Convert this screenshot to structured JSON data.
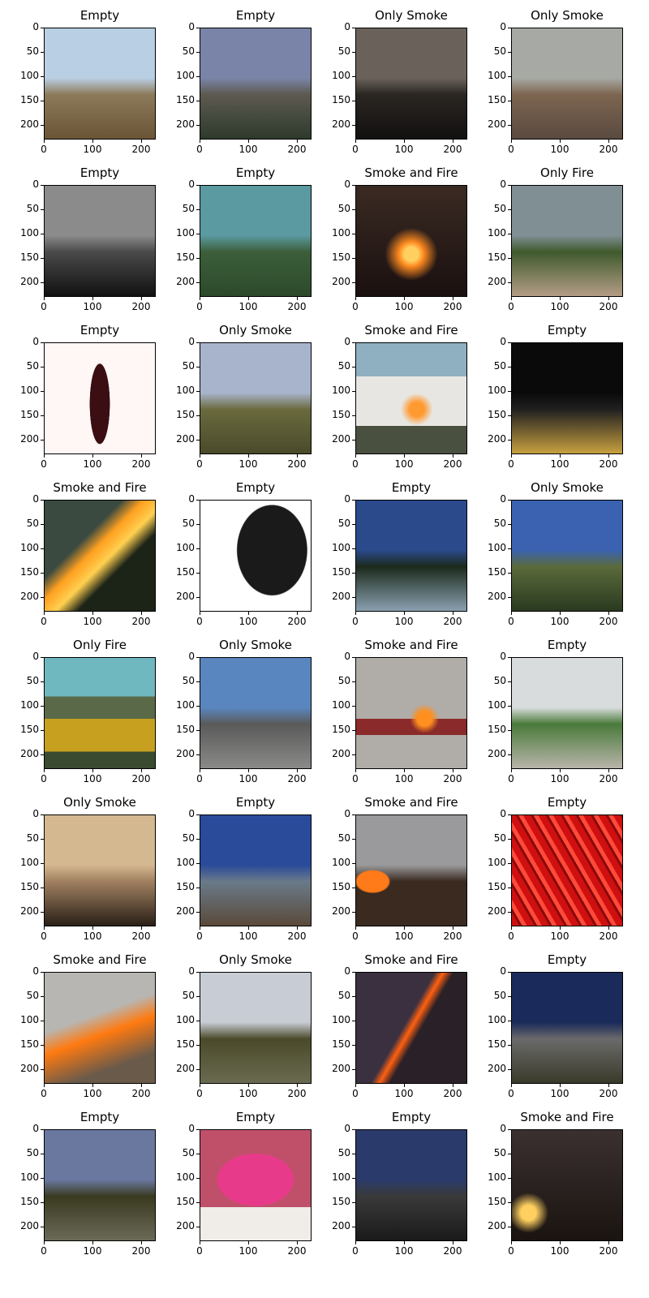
{
  "axis": {
    "y_ticks": [
      "0",
      "50",
      "100",
      "150",
      "200"
    ],
    "x_ticks": [
      "0",
      "100",
      "200"
    ]
  },
  "panels": [
    {
      "title": "Empty",
      "scene": "mountain-landscape",
      "colors": [
        "#b9cfe3",
        "#8c7a5a",
        "#6a5536"
      ]
    },
    {
      "title": "Empty",
      "scene": "aerial-valley",
      "colors": [
        "#7a84a8",
        "#5d5a50",
        "#2e3a2c"
      ]
    },
    {
      "title": "Only Smoke",
      "scene": "dark-smoke",
      "colors": [
        "#6a625a",
        "#2a2622",
        "#121010"
      ]
    },
    {
      "title": "Only Smoke",
      "scene": "aerial-factory-smoke",
      "colors": [
        "#a7a9a4",
        "#7d6550",
        "#5a4a40"
      ]
    },
    {
      "title": "Empty",
      "scene": "cloudy-sky",
      "colors": [
        "#8b8b8b",
        "#4a4a4a",
        "#111111"
      ]
    },
    {
      "title": "Empty",
      "scene": "green-hills",
      "colors": [
        "#5a9aa0",
        "#3c5e3a",
        "#2c4a2a"
      ]
    },
    {
      "title": "Smoke and Fire",
      "scene": "night-fire",
      "colors": [
        "#3a2a22",
        "#ff8a20",
        "#1a1010"
      ]
    },
    {
      "title": "Only Fire",
      "scene": "aerial-town",
      "colors": [
        "#7f8f94",
        "#3f5a2c",
        "#b49c86"
      ]
    },
    {
      "title": "Empty",
      "scene": "wine-bottle",
      "colors": [
        "#fff6f6",
        "#3a0e12",
        "#e8e0d6"
      ]
    },
    {
      "title": "Only Smoke",
      "scene": "hill-smoke",
      "colors": [
        "#a8b4cc",
        "#6a6a3e",
        "#4a4a2a"
      ]
    },
    {
      "title": "Smoke and Fire",
      "scene": "bus-fire",
      "colors": [
        "#8fb0c0",
        "#e8e6e2",
        "#ff9a30"
      ]
    },
    {
      "title": "Empty",
      "scene": "night-dark",
      "colors": [
        "#0a0a0a",
        "#202020",
        "#c8a040"
      ]
    },
    {
      "title": "Smoke and Fire",
      "scene": "slope-fire",
      "colors": [
        "#3a4a40",
        "#ffa020",
        "#1c2418"
      ]
    },
    {
      "title": "Empty",
      "scene": "trash-bags",
      "colors": [
        "#ffffff",
        "#1a1a1a",
        "#e0b020"
      ]
    },
    {
      "title": "Empty",
      "scene": "camera-view",
      "colors": [
        "#2a4a8c",
        "#1c2a1c",
        "#8aa0b0"
      ]
    },
    {
      "title": "Only Smoke",
      "scene": "valley-day",
      "colors": [
        "#3a62b0",
        "#5a6a3a",
        "#2a3a20"
      ]
    },
    {
      "title": "Only Fire",
      "scene": "cylinders",
      "colors": [
        "#70b8c0",
        "#c8a020",
        "#3a4a30"
      ]
    },
    {
      "title": "Only Smoke",
      "scene": "warehouse-smoke",
      "colors": [
        "#5a86c0",
        "#5a5a5a",
        "#8a8a88"
      ]
    },
    {
      "title": "Smoke and Fire",
      "scene": "car-fire",
      "colors": [
        "#b0aca8",
        "#8a2a2a",
        "#ff9020"
      ]
    },
    {
      "title": "Empty",
      "scene": "road",
      "colors": [
        "#d8dcdc",
        "#4a7a3a",
        "#b8b4aa"
      ]
    },
    {
      "title": "Only Smoke",
      "scene": "hazy-sun",
      "colors": [
        "#d4b890",
        "#a08060",
        "#2a2018"
      ]
    },
    {
      "title": "Empty",
      "scene": "camera-sky",
      "colors": [
        "#2a4a9a",
        "#6a7a8a",
        "#5a4a3a"
      ]
    },
    {
      "title": "Smoke and Fire",
      "scene": "grass-fire",
      "colors": [
        "#9a9a9c",
        "#ff7a18",
        "#3a2a20"
      ]
    },
    {
      "title": "Empty",
      "scene": "chili-peppers",
      "colors": [
        "#d01010",
        "#8a0808",
        "#ff4a3a"
      ]
    },
    {
      "title": "Smoke and Fire",
      "scene": "big-smoke-fire",
      "colors": [
        "#b8b6b2",
        "#ff7a10",
        "#6a5a4a"
      ]
    },
    {
      "title": "Only Smoke",
      "scene": "hills-cam",
      "colors": [
        "#c8ccd4",
        "#4a4a2a",
        "#6a6a50"
      ]
    },
    {
      "title": "Smoke and Fire",
      "scene": "fire-line",
      "colors": [
        "#3a3040",
        "#ff6010",
        "#2a2028"
      ]
    },
    {
      "title": "Empty",
      "scene": "fisheye-valley",
      "colors": [
        "#1a2a5a",
        "#6a6a6a",
        "#3a3a2a"
      ]
    },
    {
      "title": "Empty",
      "scene": "hills-dark",
      "colors": [
        "#6a78a0",
        "#3a3a20",
        "#6a6a58"
      ]
    },
    {
      "title": "Empty",
      "scene": "dragon-fruit",
      "colors": [
        "#c0506a",
        "#e83a8a",
        "#f0ece8"
      ]
    },
    {
      "title": "Empty",
      "scene": "dusk-valley",
      "colors": [
        "#2a3a6a",
        "#3a3a3a",
        "#1a1a1a"
      ]
    },
    {
      "title": "Smoke and Fire",
      "scene": "sunset-smoke",
      "colors": [
        "#3a3030",
        "#ffd060",
        "#1a1410"
      ]
    }
  ]
}
